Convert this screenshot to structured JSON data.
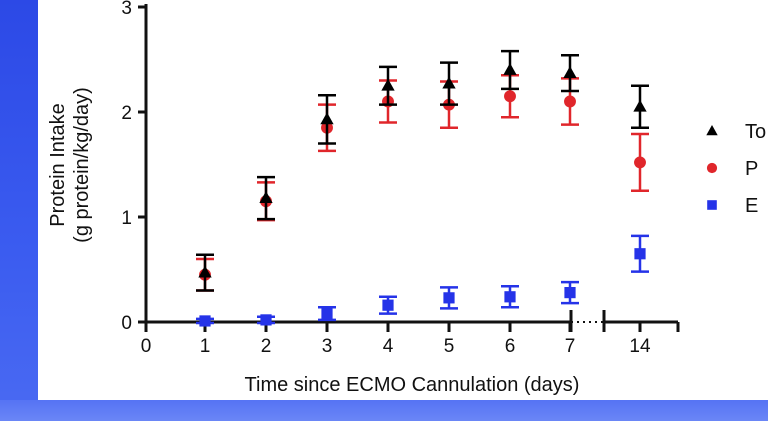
{
  "chart_data": {
    "type": "scatter",
    "title": "",
    "xlabel": "Time since ECMO Cannulation (days)",
    "ylabel_line1": "Protein Intake",
    "ylabel_line2": "(g protein/kg/day)",
    "ylim": [
      0,
      3
    ],
    "y_ticks": [
      "0",
      "1",
      "2",
      "3"
    ],
    "x_ticks": [
      "0",
      "1",
      "2",
      "3",
      "4",
      "5",
      "6",
      "7",
      "14"
    ],
    "x_axis_break": "between 7 and 14",
    "categories": [
      1,
      2,
      3,
      4,
      5,
      6,
      7,
      14
    ],
    "series": [
      {
        "name": "To",
        "marker": "triangle",
        "color": "#000000",
        "values": [
          0.47,
          1.18,
          1.93,
          2.25,
          2.27,
          2.4,
          2.37,
          2.05
        ],
        "err": [
          0.17,
          0.2,
          0.23,
          0.18,
          0.2,
          0.18,
          0.17,
          0.2
        ]
      },
      {
        "name": "P",
        "marker": "circle",
        "color": "#e0262b",
        "values": [
          0.45,
          1.15,
          1.85,
          2.1,
          2.07,
          2.15,
          2.1,
          1.52
        ],
        "err": [
          0.15,
          0.18,
          0.22,
          0.2,
          0.22,
          0.2,
          0.22,
          0.27
        ]
      },
      {
        "name": "E",
        "marker": "square",
        "color": "#2533e8",
        "values": [
          0.01,
          0.02,
          0.08,
          0.16,
          0.23,
          0.24,
          0.28,
          0.65
        ],
        "err": [
          0.02,
          0.03,
          0.06,
          0.08,
          0.1,
          0.1,
          0.1,
          0.17
        ]
      }
    ],
    "legend_position": "right"
  }
}
